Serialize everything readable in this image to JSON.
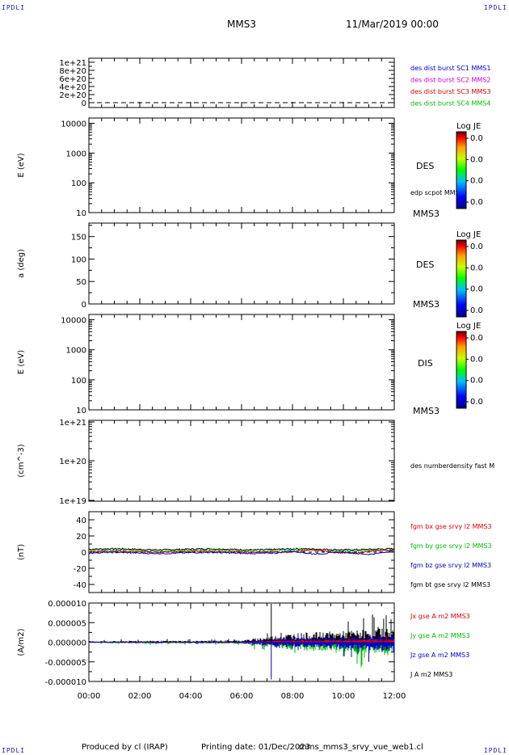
{
  "corner_label": "IPDLI",
  "header": {
    "title": "MMS3",
    "date": "11/Mar/2019 00:00"
  },
  "footer": {
    "produced_by": "Produced by cl (IRAP)",
    "printing_date": "Printing date: 01/Dec/2023",
    "script_name": "mms_mms3_srvy_vue_web1.cl"
  },
  "colorbar": {
    "title": "Log JE",
    "tick_labels": [
      "0.0",
      "0.0",
      "0.0",
      "0.0"
    ]
  },
  "chart_data": [
    {
      "type": "line",
      "panel": "des-dist-burst",
      "ylim": [
        0,
        1e+21
      ],
      "y_tick_labels": [
        "1e+21",
        "8e+20",
        "6e+20",
        "4e+20",
        "2e+20",
        "0"
      ],
      "reference_line": 0,
      "legend": [
        {
          "label": "des dist burst SC1 MMS1",
          "color": "#0000cc"
        },
        {
          "label": "des dist burst SC2 MMS2",
          "color": "#cc00cc"
        },
        {
          "label": "des dist burst SC3 MMS3",
          "color": "#dd0000"
        },
        {
          "label": "des dist burst SC4 MMS4",
          "color": "#00bb00"
        }
      ]
    },
    {
      "type": "heatmap",
      "panel": "des-energy-spectrogram",
      "ylabel": "E (eV)",
      "scale": "log",
      "ylim": [
        10,
        15000
      ],
      "y_tick_labels": [
        "10000",
        "1000",
        "100",
        "10"
      ],
      "side_label": "DES",
      "overlay_label": "edp scpot MMS3",
      "spacecraft_label": "MMS3"
    },
    {
      "type": "heatmap",
      "panel": "des-pitch-angle",
      "ylabel": "a (deg)",
      "ylim": [
        0,
        180
      ],
      "y_tick_labels": [
        "150",
        "100",
        "50",
        "0"
      ],
      "side_label": "DES",
      "spacecraft_label": "MMS3"
    },
    {
      "type": "heatmap",
      "panel": "dis-energy-spectrogram",
      "ylabel": "E (eV)",
      "scale": "log",
      "ylim": [
        10,
        15000
      ],
      "y_tick_labels": [
        "10000",
        "1000",
        "100",
        "10"
      ],
      "side_label": "DIS",
      "spacecraft_label": "MMS3"
    },
    {
      "type": "line",
      "panel": "des-density",
      "ylabel": "(cm^-3)",
      "scale": "log",
      "ylim": [
        1e+19,
        1e+21
      ],
      "y_tick_labels": [
        "1e+21",
        "1e+20",
        "1e+19"
      ],
      "legend": [
        {
          "label": "des numberdensity fast M",
          "color": "#000000"
        }
      ]
    },
    {
      "type": "line",
      "panel": "fgm-b-field",
      "ylabel": "(nT)",
      "ylim": [
        -50,
        50
      ],
      "y_tick_labels": [
        "40",
        "20",
        "0",
        "-20",
        "-40"
      ],
      "legend": [
        {
          "label": "fgm bx gse srvy l2 MMS3",
          "color": "#dd0000"
        },
        {
          "label": "fgm by gse srvy l2 MMS3",
          "color": "#00bb00"
        },
        {
          "label": "fgm bz gse srvy l2 MMS3",
          "color": "#0000cc"
        },
        {
          "label": "fgm bt gse srvy l2 MMS3",
          "color": "#000000"
        }
      ],
      "series_level_nT": {
        "bx": 0.5,
        "by": 2.0,
        "bz": -1.0,
        "bt": 3.5
      }
    },
    {
      "type": "line",
      "panel": "current-density",
      "ylabel": "(A/m2)",
      "ylim": [
        -1e-05,
        1e-05
      ],
      "y_tick_labels": [
        "0.000010",
        "0.000005",
        "0.000000",
        "-0.000005",
        "-0.000010"
      ],
      "legend": [
        {
          "label": "Jx gse A m2 MMS3",
          "color": "#dd0000"
        },
        {
          "label": "Jy gse A m2 MMS3",
          "color": "#00bb00"
        },
        {
          "label": "Jz gse A m2 MMS3",
          "color": "#0000cc"
        },
        {
          "label": "J A m2 MMS3",
          "color": "#000000"
        }
      ],
      "x": [
        "00:00",
        "02:00",
        "04:00",
        "06:00",
        "08:00",
        "10:00",
        "12:00"
      ],
      "j_envelope": [
        2e-07,
        3e-07,
        3e-07,
        4e-07,
        1.8e-06,
        2.2e-06,
        3e-06
      ],
      "spikes": [
        {
          "t": "07:10",
          "value": 9.8e-06
        },
        {
          "t": "07:10",
          "value": -9.5e-06
        },
        {
          "t": "11:00",
          "value": -5e-06
        },
        {
          "t": "11:35",
          "value": 6e-06
        }
      ]
    }
  ],
  "x_axis": {
    "tick_labels": [
      "00:00",
      "02:00",
      "04:00",
      "06:00",
      "08:00",
      "10:00",
      "12:00"
    ],
    "range_hours": [
      0,
      12
    ]
  }
}
